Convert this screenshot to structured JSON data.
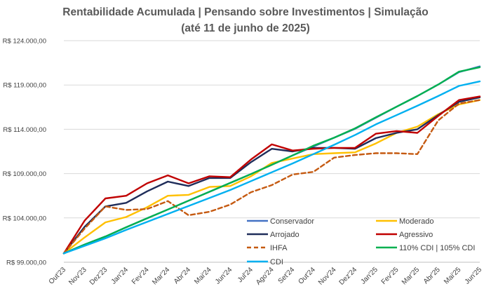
{
  "title_line1": "Rentabilidade Acumulada | Pensando sobre Investimentos | Simulação",
  "title_line2": "(até 11 de junho de 2025)",
  "chart_data": {
    "type": "line",
    "title": "Rentabilidade Acumulada | Pensando sobre Investimentos | Simulação (até 11 de junho de 2025)",
    "xlabel": "",
    "ylabel": "",
    "categories": [
      "Out'23",
      "Nov'23",
      "Dez'23",
      "Jan'24",
      "Fev'24",
      "Mar'24",
      "Abr'24",
      "Mai'24",
      "Jun'24",
      "Jul'24",
      "Ago'24",
      "Set'24",
      "Out'24",
      "Nov'24",
      "Dez'24",
      "Jan'25",
      "Fev'25",
      "Mar'25",
      "Abr'25",
      "Mai'25",
      "Jun'25"
    ],
    "y_ticks": [
      "R$ 99.000,00",
      "R$ 104.000,00",
      "R$ 109.000,00",
      "R$ 114.000,00",
      "R$ 119.000,00",
      "R$ 124.000,00"
    ],
    "y_tick_values": [
      99000,
      104000,
      109000,
      114000,
      119000,
      124000
    ],
    "ylim": [
      99000,
      124000
    ],
    "grid": true,
    "legend_placement": "bottom-right (inside)",
    "series": [
      {
        "name": "Conservador",
        "color": "#4472C4",
        "dash": "solid",
        "values": [
          100000,
          101000,
          101900,
          102950,
          103950,
          104950,
          105950,
          106950,
          107950,
          108950,
          110000,
          111050,
          112050,
          113050,
          114050,
          115300,
          116550,
          117750,
          119050,
          120450,
          121100
        ]
      },
      {
        "name": "Moderado",
        "color": "#FFC000",
        "dash": "solid",
        "values": [
          100000,
          101800,
          103500,
          104100,
          105200,
          106500,
          106600,
          107500,
          107600,
          108700,
          110200,
          110700,
          111200,
          111300,
          111400,
          112400,
          113600,
          114300,
          115700,
          116800,
          117300
        ]
      },
      {
        "name": "Arrojado",
        "color": "#1F2D5A",
        "dash": "solid",
        "values": [
          100000,
          103000,
          105300,
          105700,
          107000,
          108100,
          107600,
          108500,
          108500,
          110300,
          111800,
          111500,
          111900,
          111900,
          111800,
          113000,
          113600,
          114000,
          115600,
          117100,
          117600
        ]
      },
      {
        "name": "Agressivo",
        "color": "#C00000",
        "dash": "solid",
        "values": [
          100000,
          103700,
          106200,
          106500,
          107900,
          108800,
          107900,
          108700,
          108600,
          110600,
          112300,
          111600,
          111800,
          111900,
          111900,
          113500,
          113800,
          113600,
          115500,
          117300,
          117700
        ]
      },
      {
        "name": "IHFA",
        "color": "#C55A11",
        "dash": "dashed",
        "values": [
          100000,
          102800,
          105300,
          104900,
          105000,
          105900,
          104300,
          104700,
          105500,
          106900,
          107700,
          108900,
          109200,
          110800,
          111100,
          111300,
          111300,
          111200,
          115000,
          116900,
          117300
        ]
      },
      {
        "name": "110% CDI | 105% CDI",
        "color": "#00B050",
        "dash": "solid",
        "values": [
          100000,
          101000,
          101900,
          102950,
          103950,
          104950,
          105950,
          106950,
          107950,
          108950,
          110000,
          111050,
          112150,
          113050,
          114100,
          115350,
          116550,
          117750,
          119050,
          120500,
          121000
        ]
      },
      {
        "name": "CDI",
        "color": "#00B0F0",
        "dash": "solid",
        "values": [
          100000,
          100850,
          101700,
          102650,
          103550,
          104450,
          105350,
          106250,
          107150,
          108150,
          109150,
          110150,
          111200,
          112250,
          113350,
          114550,
          115600,
          116650,
          117750,
          118900,
          119400
        ]
      }
    ]
  }
}
